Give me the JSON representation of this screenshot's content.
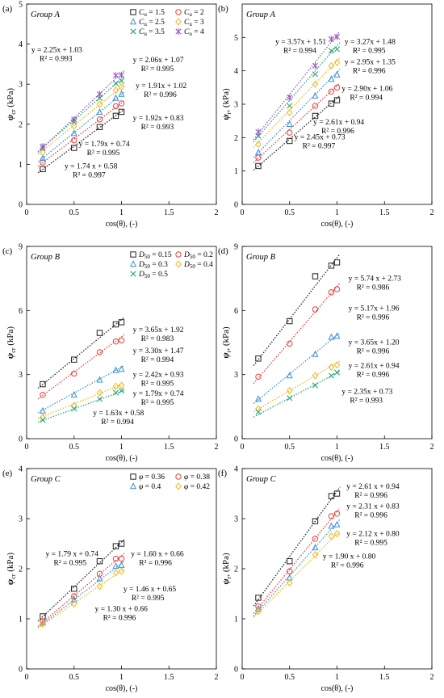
{
  "chart_data": [
    {
      "type": "scatter",
      "panel_label": "(a)",
      "group_label": "Group A",
      "xlabel": "cos(θ), (-)",
      "ylabel_main": "ψ",
      "ylabel_sub": "cr",
      "ylabel_unit": " (kPa)",
      "xlim": [
        0,
        2
      ],
      "ylim": [
        0,
        5
      ],
      "xticks": [
        "0",
        "0.5",
        "1",
        "1.5",
        "2"
      ],
      "yticks": [
        "0",
        "1",
        "2",
        "3",
        "4",
        "5"
      ],
      "legend_param": "C",
      "legend_sub": "u",
      "legend_placement": "top-right",
      "x": [
        0.17,
        0.5,
        0.77,
        0.94,
        1.0
      ],
      "series": [
        {
          "name": " = 1.5",
          "marker": "square",
          "color": "#222222",
          "values": [
            0.88,
            1.41,
            1.93,
            2.21,
            2.31
          ],
          "fit": [
            1.74,
            0.58
          ]
        },
        {
          "name": " = 2",
          "marker": "circle",
          "color": "#e8403a",
          "values": [
            1.05,
            1.6,
            2.12,
            2.45,
            2.52
          ],
          "fit": [
            1.79,
            0.74
          ]
        },
        {
          "name": " = 2.5",
          "marker": "triangle",
          "color": "#3b8fd6",
          "values": [
            1.15,
            1.77,
            2.3,
            2.65,
            2.75
          ],
          "fit": [
            1.92,
            0.83
          ]
        },
        {
          "name": " = 3",
          "marker": "diamond",
          "color": "#f2b61c",
          "values": [
            1.3,
            1.96,
            2.5,
            2.85,
            2.93
          ],
          "fit": [
            1.91,
            1.02
          ]
        },
        {
          "name": " = 3.5",
          "marker": "x",
          "color": "#2aa676",
          "values": [
            1.4,
            2.07,
            2.65,
            3.02,
            3.08
          ],
          "fit": [
            2.06,
            1.07
          ]
        },
        {
          "name": " = 4",
          "marker": "star",
          "color": "#9b59c6",
          "values": [
            1.45,
            2.12,
            2.75,
            3.22,
            3.23
          ],
          "fit": [
            2.25,
            1.03
          ]
        }
      ],
      "annotations": [
        {
          "text1": "y = 2.25x + 1.03",
          "text2": "R² = 0.993",
          "at": [
            0.05,
            3.8
          ]
        },
        {
          "text1": "y = 2.06x + 1.07",
          "text2": "R² = 0.995",
          "at": [
            1.12,
            3.55
          ]
        },
        {
          "text1": "y = 1.91x + 1.02",
          "text2": "R² = 0.996",
          "at": [
            1.15,
            2.9
          ]
        },
        {
          "text1": "y = 1.92x + 0.83",
          "text2": "R² = 0.993",
          "at": [
            1.12,
            2.1
          ]
        },
        {
          "text1": "y = 1.79x + 0.74",
          "text2": "R² = 0.995",
          "at": [
            0.55,
            1.45
          ]
        },
        {
          "text1": "y = 1.74 x + 0.58",
          "text2": "R² = 0.997",
          "at": [
            0.4,
            0.9
          ]
        }
      ]
    },
    {
      "type": "scatter",
      "panel_label": "(b)",
      "group_label": "Group A",
      "xlabel": "cos(θ), (-)",
      "ylabel_main": "ψ",
      "ylabel_sub": "r",
      "ylabel_unit": ", (kPa)",
      "xlim": [
        0,
        2
      ],
      "ylim": [
        0,
        6
      ],
      "xticks": [
        "0",
        "0.5",
        "1",
        "1.5",
        "2"
      ],
      "yticks": [
        "0",
        "1",
        "2",
        "3",
        "4",
        "5"
      ],
      "x": [
        0.17,
        0.5,
        0.77,
        0.94,
        1.0
      ],
      "series": [
        {
          "marker": "square",
          "color": "#222222",
          "values": [
            1.15,
            1.9,
            2.65,
            3.02,
            3.12
          ],
          "fit": [
            2.45,
            0.73
          ]
        },
        {
          "marker": "circle",
          "color": "#e8403a",
          "values": [
            1.4,
            2.15,
            2.95,
            3.38,
            3.5
          ],
          "fit": [
            2.61,
            0.94
          ]
        },
        {
          "marker": "triangle",
          "color": "#3b8fd6",
          "values": [
            1.55,
            2.4,
            3.25,
            3.75,
            3.88
          ],
          "fit": [
            2.9,
            1.06
          ]
        },
        {
          "marker": "diamond",
          "color": "#f2b61c",
          "values": [
            1.8,
            2.75,
            3.6,
            4.15,
            4.25
          ],
          "fit": [
            2.95,
            1.35
          ]
        },
        {
          "marker": "x",
          "color": "#2aa676",
          "values": [
            2.05,
            2.95,
            3.9,
            4.6,
            4.65
          ],
          "fit": [
            3.27,
            1.48
          ]
        },
        {
          "marker": "star",
          "color": "#9b59c6",
          "values": [
            2.17,
            3.2,
            4.15,
            4.95,
            5.02
          ],
          "fit": [
            3.57,
            1.51
          ]
        }
      ],
      "annotations": [
        {
          "text1": "y = 3.57x + 1.51",
          "text2": "R² = 0.994",
          "at": [
            0.35,
            4.8
          ]
        },
        {
          "text1": "y = 3.27x + 1.48",
          "text2": "R² = 0.995",
          "at": [
            1.08,
            4.8
          ]
        },
        {
          "text1": "y = 2.95x + 1.35",
          "text2": "R² = 0.996",
          "at": [
            1.08,
            4.2
          ]
        },
        {
          "text1": "y = 2.90x + 1.06",
          "text2": "R² = 0.994",
          "at": [
            1.05,
            3.4
          ]
        },
        {
          "text1": "y = 2.61x + 0.94",
          "text2": "R² = 0.996",
          "at": [
            0.75,
            2.4
          ]
        },
        {
          "text1": "y = 2.45x + 0.73",
          "text2": "R² = 0.997",
          "at": [
            0.55,
            1.95
          ]
        }
      ]
    },
    {
      "type": "scatter",
      "panel_label": "(c)",
      "group_label": "Group B",
      "xlabel": "cos(θ), (-)",
      "ylabel_main": "ψ",
      "ylabel_sub": "cr",
      "ylabel_unit": " (kPa)",
      "xlim": [
        0,
        2
      ],
      "ylim": [
        0,
        9
      ],
      "xticks": [
        "0",
        "0.5",
        "1",
        "1.5",
        "2"
      ],
      "yticks": [
        "0",
        "3",
        "6",
        "9"
      ],
      "legend_param": "D",
      "legend_sub": "50",
      "legend_placement": "top-right",
      "x": [
        0.17,
        0.5,
        0.77,
        0.94,
        1.0
      ],
      "series": [
        {
          "name": " = 0.15",
          "marker": "square",
          "color": "#222222",
          "values": [
            2.55,
            3.7,
            4.95,
            5.35,
            5.45
          ],
          "fit": [
            3.65,
            1.92
          ]
        },
        {
          "name": " = 0.2",
          "marker": "circle",
          "color": "#e8403a",
          "values": [
            2.05,
            3.05,
            4.05,
            4.55,
            4.6
          ],
          "fit": [
            3.3,
            1.47
          ]
        },
        {
          "name": " = 0.3",
          "marker": "triangle",
          "color": "#3b8fd6",
          "values": [
            1.3,
            2.05,
            2.75,
            3.2,
            3.25
          ],
          "fit": [
            2.42,
            0.93
          ]
        },
        {
          "name": " = 0.4",
          "marker": "diamond",
          "color": "#f2b61c",
          "values": [
            1.0,
            1.55,
            2.15,
            2.45,
            2.5
          ],
          "fit": [
            1.79,
            0.74
          ]
        },
        {
          "name": " = 0.5",
          "marker": "x",
          "color": "#2aa676",
          "values": [
            0.88,
            1.4,
            1.85,
            2.15,
            2.25
          ],
          "fit": [
            1.63,
            0.58
          ]
        }
      ],
      "annotations": [
        {
          "text1": "y = 3.65x + 1.92",
          "text2": "R² = 0.983",
          "at": [
            1.12,
            5.0
          ]
        },
        {
          "text1": "y = 3.30x + 1.47",
          "text2": "R² = 0.994",
          "at": [
            1.12,
            4.0
          ]
        },
        {
          "text1": "y = 2.42x + 0.93",
          "text2": "R² = 0.995",
          "at": [
            1.12,
            2.9
          ]
        },
        {
          "text1": "y = 1.79x + 0.74",
          "text2": "R² = 0.995",
          "at": [
            1.12,
            2.0
          ]
        },
        {
          "text1": "y = 1.63x + 0.58",
          "text2": "R² = 0.994",
          "at": [
            0.7,
            1.1
          ]
        }
      ]
    },
    {
      "type": "scatter",
      "panel_label": "(d)",
      "group_label": "Group B",
      "xlabel": "cos(θ), (-)",
      "ylabel_main": "ψ",
      "ylabel_sub": "r",
      "ylabel_unit": ", (kPa)",
      "xlim": [
        0,
        2
      ],
      "ylim": [
        0,
        9
      ],
      "xticks": [
        "0",
        "0.5",
        "1",
        "1.5",
        "2"
      ],
      "yticks": [
        "0",
        "3",
        "6",
        "9"
      ],
      "x": [
        0.17,
        0.5,
        0.77,
        0.94,
        1.0
      ],
      "series": [
        {
          "marker": "square",
          "color": "#222222",
          "values": [
            3.75,
            5.5,
            7.6,
            8.1,
            8.25
          ],
          "fit": [
            5.74,
            2.73
          ]
        },
        {
          "marker": "circle",
          "color": "#e8403a",
          "values": [
            2.9,
            4.45,
            6.05,
            6.85,
            7.0
          ],
          "fit": [
            5.17,
            1.96
          ]
        },
        {
          "marker": "triangle",
          "color": "#3b8fd6",
          "values": [
            1.85,
            2.95,
            3.95,
            4.75,
            4.8
          ],
          "fit": [
            3.65,
            1.2
          ]
        },
        {
          "marker": "diamond",
          "color": "#f2b61c",
          "values": [
            1.4,
            2.25,
            2.95,
            3.35,
            3.45
          ],
          "fit": [
            2.61,
            0.94
          ]
        },
        {
          "marker": "x",
          "color": "#2aa676",
          "values": [
            1.25,
            1.9,
            2.5,
            2.95,
            3.1
          ],
          "fit": [
            2.35,
            0.73
          ]
        }
      ],
      "annotations": [
        {
          "text1": "y = 5.74 x + 2.73",
          "text2": "R² = 0.986",
          "at": [
            1.12,
            7.4
          ]
        },
        {
          "text1": "y = 5.17x + 1.96",
          "text2": "R² = 0.996",
          "at": [
            1.12,
            6.0
          ]
        },
        {
          "text1": "y = 3.65x + 1.20",
          "text2": "R² = 0.996",
          "at": [
            1.12,
            4.4
          ]
        },
        {
          "text1": "y = 2.61x + 0.94",
          "text2": "R² = 0.996",
          "at": [
            1.12,
            3.3
          ]
        },
        {
          "text1": "y = 2.35x + 0.73",
          "text2": "R² = 0.993",
          "at": [
            1.05,
            2.1
          ]
        }
      ]
    },
    {
      "type": "scatter",
      "panel_label": "(e)",
      "group_label": "Group C",
      "xlabel": "cos(θ), (-)",
      "ylabel_main": "ψ",
      "ylabel_sub": "cr",
      "ylabel_unit": " (kPa)",
      "xlim": [
        0,
        2
      ],
      "ylim": [
        0,
        4
      ],
      "xticks": [
        "0",
        "0.5",
        "1",
        "1.5",
        "2"
      ],
      "yticks": [
        "0",
        "1",
        "2",
        "3",
        "4"
      ],
      "legend_param": "φ",
      "legend_sub": "",
      "legend_placement": "top-right",
      "x": [
        0.17,
        0.5,
        0.77,
        0.94,
        1.0
      ],
      "series": [
        {
          "name": " = 0.36",
          "marker": "square",
          "color": "#222222",
          "values": [
            1.05,
            1.6,
            2.15,
            2.45,
            2.5
          ],
          "fit": [
            1.79,
            0.74
          ]
        },
        {
          "name": " = 0.38",
          "marker": "circle",
          "color": "#e8403a",
          "values": [
            0.95,
            1.45,
            1.9,
            2.2,
            2.2
          ],
          "fit": [
            1.6,
            0.66
          ]
        },
        {
          "name": " = 0.4",
          "marker": "triangle",
          "color": "#3b8fd6",
          "values": [
            0.92,
            1.38,
            1.8,
            2.05,
            2.07
          ],
          "fit": [
            1.46,
            0.65
          ]
        },
        {
          "name": " = 0.42",
          "marker": "diamond",
          "color": "#f2b61c",
          "values": [
            0.9,
            1.3,
            1.65,
            1.92,
            1.95
          ],
          "fit": [
            1.3,
            0.66
          ]
        }
      ],
      "annotations": [
        {
          "text1": "y = 1.79 x + 0.74",
          "text2": "R² = 0.995",
          "at": [
            0.2,
            2.25
          ]
        },
        {
          "text1": "y = 1.60 x + 0.66",
          "text2": "R² = 0.996",
          "at": [
            1.1,
            2.25
          ]
        },
        {
          "text1": "y = 1.46 x + 0.65",
          "text2": "R² = 0.995",
          "at": [
            1.02,
            1.55
          ]
        },
        {
          "text1": "y = 1.30 x + 0.66",
          "text2": "R² = 0.996",
          "at": [
            0.72,
            1.15
          ]
        }
      ]
    },
    {
      "type": "scatter",
      "panel_label": "(f)",
      "group_label": "Group C",
      "xlabel": "cos(θ), (-)",
      "ylabel_main": "ψ",
      "ylabel_sub": "r",
      "ylabel_unit": ", (kPa)",
      "xlim": [
        0,
        2
      ],
      "ylim": [
        0,
        4
      ],
      "xticks": [
        "0",
        "0.5",
        "1",
        "1.5",
        "2"
      ],
      "yticks": [
        "0",
        "1",
        "2",
        "3",
        "4"
      ],
      "x": [
        0.17,
        0.5,
        0.77,
        0.94,
        1.0
      ],
      "series": [
        {
          "marker": "square",
          "color": "#222222",
          "values": [
            1.42,
            2.15,
            2.95,
            3.45,
            3.5
          ],
          "fit": [
            2.61,
            0.94
          ]
        },
        {
          "marker": "circle",
          "color": "#e8403a",
          "values": [
            1.25,
            1.95,
            2.6,
            3.05,
            3.1
          ],
          "fit": [
            2.31,
            0.83
          ]
        },
        {
          "marker": "triangle",
          "color": "#3b8fd6",
          "values": [
            1.2,
            1.82,
            2.42,
            2.85,
            2.88
          ],
          "fit": [
            2.12,
            0.8
          ]
        },
        {
          "marker": "diamond",
          "color": "#f2b61c",
          "values": [
            1.15,
            1.72,
            2.28,
            2.65,
            2.7
          ],
          "fit": [
            1.9,
            0.8
          ]
        }
      ],
      "annotations": [
        {
          "text1": "y = 2.61 x + 0.94",
          "text2": "R² = 0.996",
          "at": [
            1.1,
            3.6
          ]
        },
        {
          "text1": "y = 2.31 x + 0.83",
          "text2": "R² = 0.996",
          "at": [
            1.1,
            3.2
          ]
        },
        {
          "text1": "y = 2.12 x + 0.80",
          "text2": "R² = 0.995",
          "at": [
            1.1,
            2.65
          ]
        },
        {
          "text1": "y = 1.90 x + 0.80",
          "text2": "R² = 0.996",
          "at": [
            0.85,
            2.2
          ]
        }
      ]
    }
  ]
}
